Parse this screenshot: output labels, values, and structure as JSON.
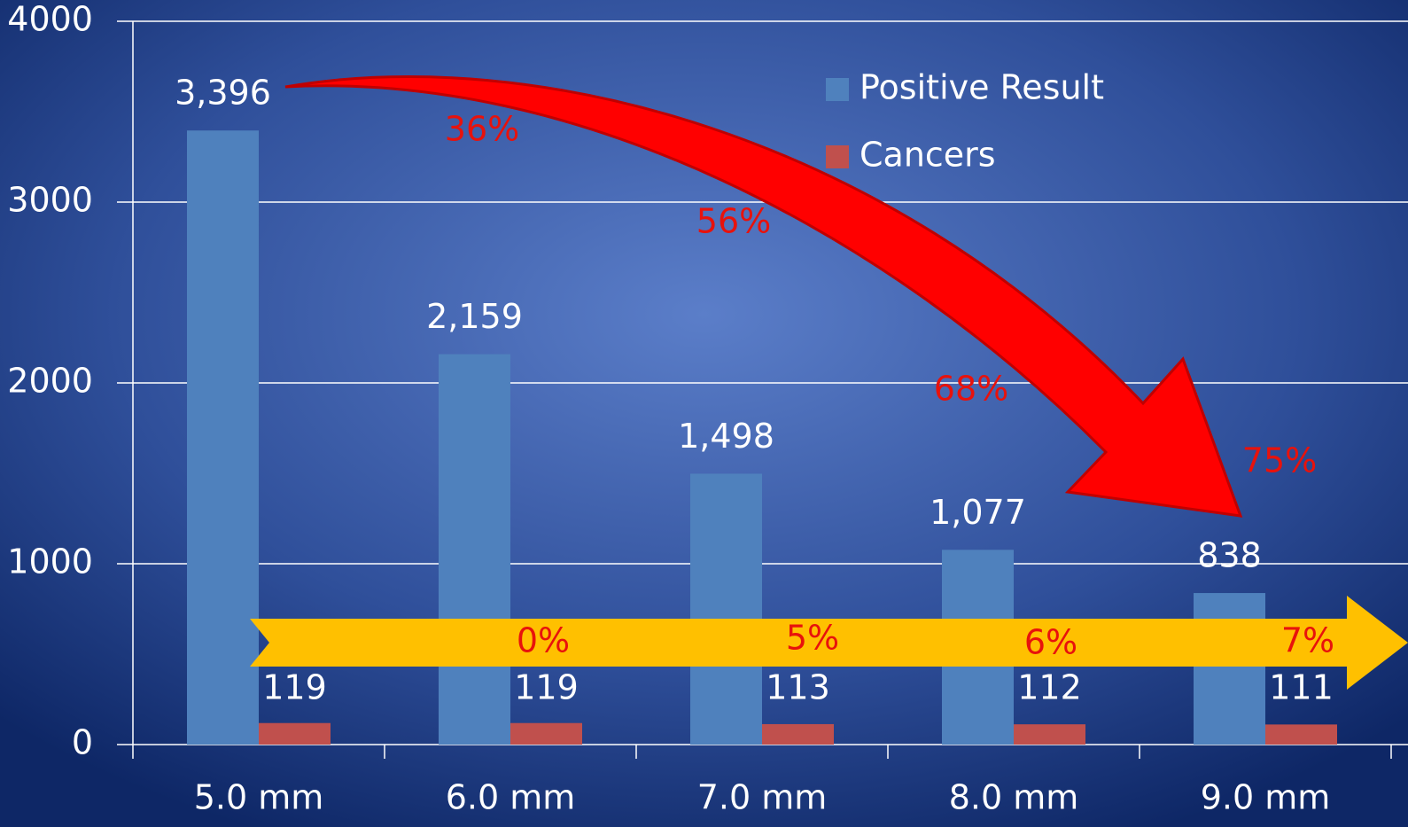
{
  "chart_data": {
    "type": "bar",
    "categories": [
      "5.0 mm",
      "6.0 mm",
      "7.0 mm",
      "8.0 mm",
      "9.0 mm"
    ],
    "series": [
      {
        "name": "Positive Result",
        "color": "#4f81bd",
        "values": [
          3396,
          2159,
          1498,
          1077,
          838
        ],
        "value_labels": [
          "3,396",
          "2,159",
          "1,498",
          "1,077",
          "838"
        ]
      },
      {
        "name": "Cancers",
        "color": "#c0504d",
        "values": [
          119,
          119,
          113,
          112,
          111
        ]
      }
    ],
    "ylim": [
      0,
      4000
    ],
    "yticks": [
      0,
      1000,
      2000,
      3000,
      4000
    ],
    "grid": true,
    "annotations": [
      "36%",
      "56%",
      "68%",
      "75%"
    ],
    "arrow_annotations": [
      "0%",
      "5%",
      "6%",
      "7%"
    ]
  }
}
